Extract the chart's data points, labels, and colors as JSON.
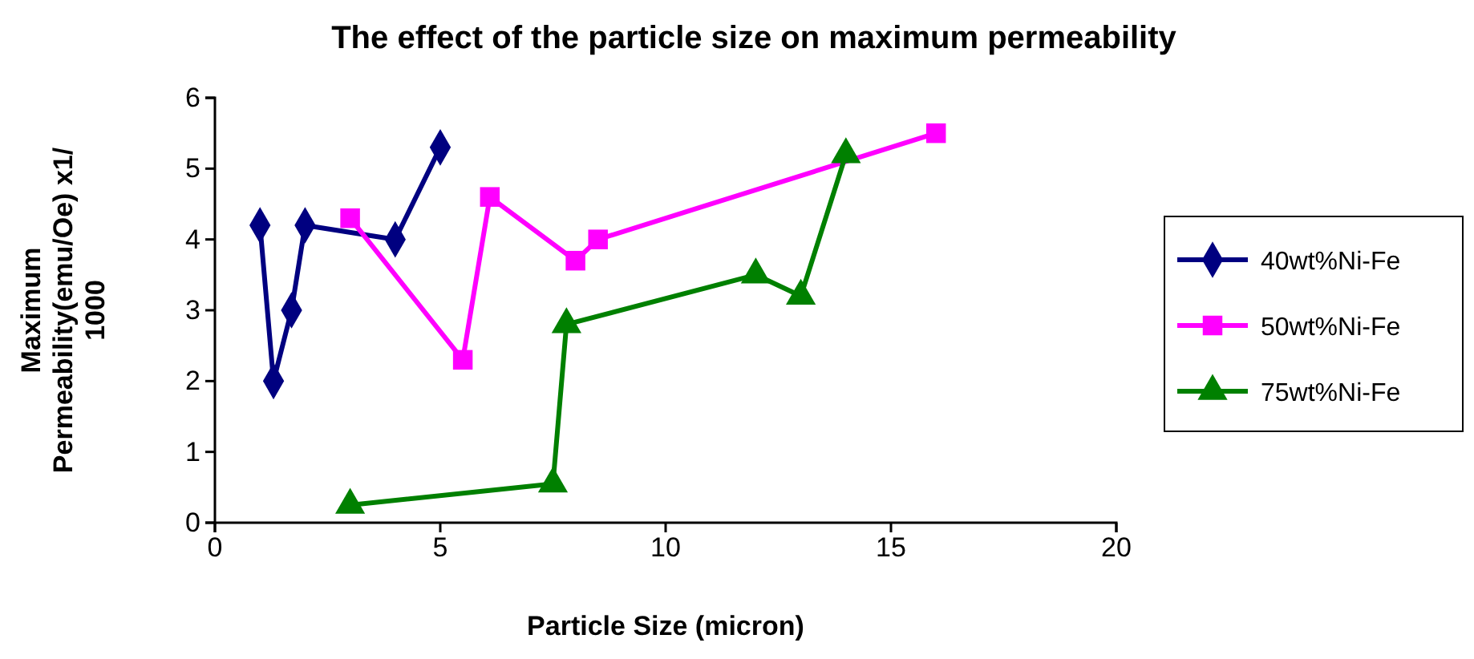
{
  "chart_data": {
    "type": "line",
    "title": "The effect of the particle size on maximum permeability",
    "xlabel": "Particle Size (micron)",
    "ylabel": "Maximum Permeability(emu/Oe) x1/ 1000",
    "xlim": [
      0,
      20
    ],
    "xticks": [
      0,
      5,
      10,
      15,
      20
    ],
    "ylim": [
      0,
      6
    ],
    "yticks": [
      0,
      1,
      2,
      3,
      4,
      5,
      6
    ],
    "grid": false,
    "legend": "right",
    "series": [
      {
        "name": "40wt%Ni-Fe",
        "color": "#000080",
        "marker": "diamond",
        "x": [
          1,
          1.3,
          1.7,
          2,
          4,
          5
        ],
        "values": [
          4.2,
          2.0,
          3.0,
          4.2,
          4.0,
          5.3
        ]
      },
      {
        "name": "50wt%Ni-Fe",
        "color": "#ff00ff",
        "marker": "square",
        "x": [
          3,
          5.5,
          6.1,
          8,
          8.5,
          16
        ],
        "values": [
          4.3,
          2.3,
          4.6,
          3.7,
          4.0,
          5.5
        ]
      },
      {
        "name": "75wt%Ni-Fe",
        "color": "#008000",
        "marker": "triangle",
        "x": [
          3,
          7.5,
          7.8,
          12,
          13,
          14
        ],
        "values": [
          0.25,
          0.55,
          2.8,
          3.5,
          3.2,
          5.2
        ]
      }
    ]
  }
}
